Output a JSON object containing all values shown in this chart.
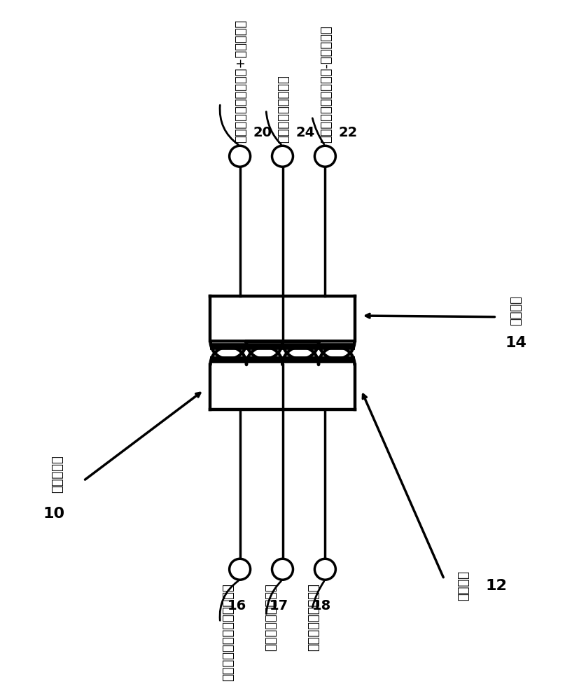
{
  "bg_color": "#ffffff",
  "line_color": "#000000",
  "lw": 2.5,
  "clw": 3.2,
  "labels": {
    "balun_title": "变压器巴伦",
    "balun_num": "10",
    "primary_label": "初级线圈",
    "primary_num": "12",
    "secondary_label": "次级线圈",
    "secondary_num": "14",
    "pri_signal": "初级线圈的信号引线（单端）",
    "pri_center": "初级线圈的中心抽头",
    "pri_ground": "初级线圈的接地引线",
    "sec_signal_pos": "次级线圈的信号引线（+）（差分）",
    "sec_center": "次级线圈的中心抽头",
    "sec_signal_neg": "次级线圈的信号引线（-）（差分）",
    "node16": "16",
    "node17": "17",
    "node18": "18",
    "node20": "20",
    "node24": "24",
    "node22": "22"
  }
}
